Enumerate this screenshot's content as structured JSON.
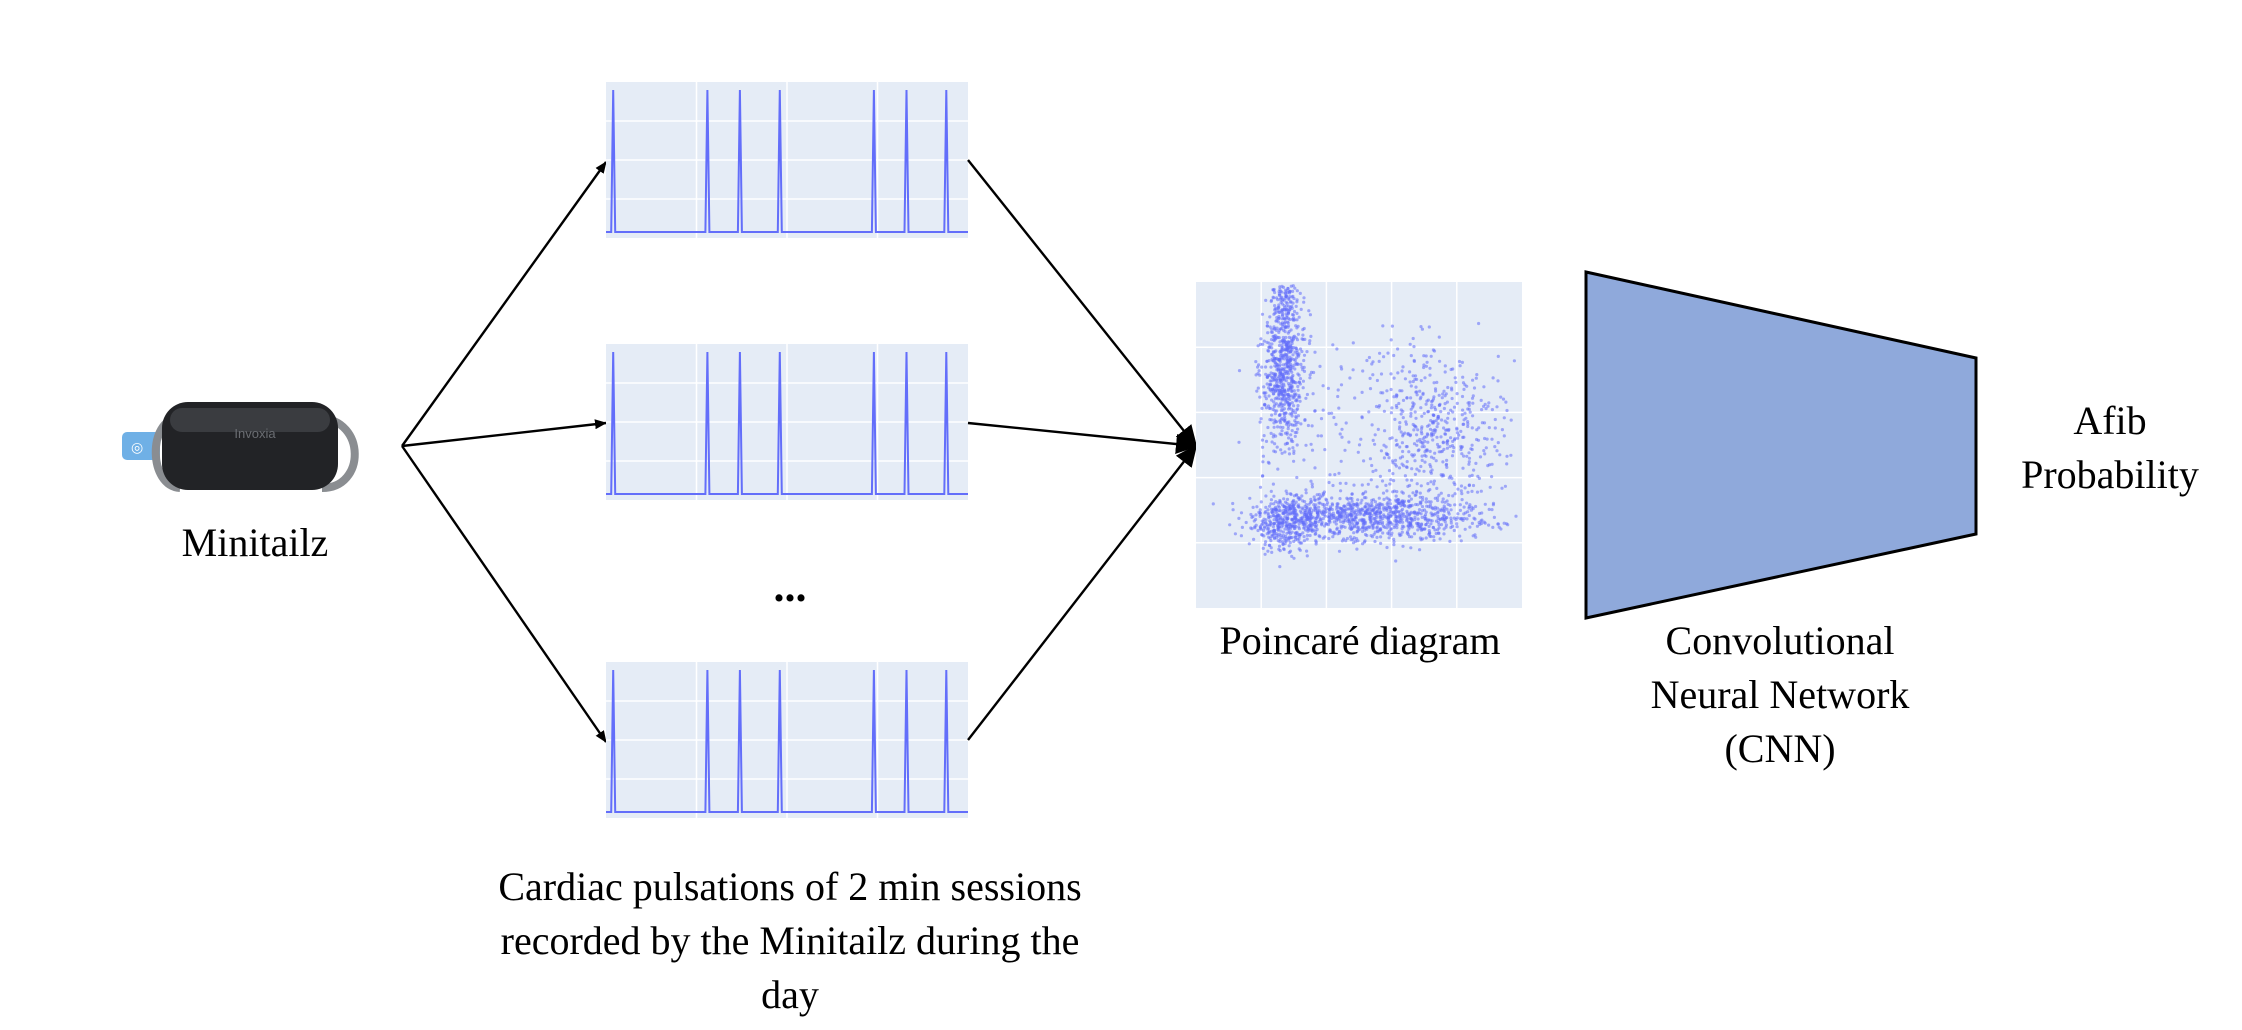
{
  "device": {
    "label": "Minitailz",
    "brand_text": "Invoxia",
    "icon": "minitailz-device-icon",
    "body_color": "#222326",
    "tag_color": "#6fb0e6"
  },
  "sessions": {
    "ellipsis": "...",
    "caption_lines": [
      "Cardiac pulsations of 2 min sessions",
      "recorded by the Minitailz during the",
      "day"
    ],
    "panel_background": "#e5ecf6",
    "signal_color": "#636efa",
    "pulse_positions": [
      0.02,
      0.28,
      0.37,
      0.48,
      0.74,
      0.83,
      0.94
    ]
  },
  "poincare": {
    "label": "Poincaré diagram",
    "panel_background": "#e5ecf6",
    "point_color": "#636efa"
  },
  "cnn": {
    "label_lines": [
      "Convolutional",
      "Neural Network",
      "(CNN)"
    ],
    "fill_color": "#8fa9db"
  },
  "output": {
    "label_lines": [
      "Afib",
      "Probability"
    ]
  }
}
